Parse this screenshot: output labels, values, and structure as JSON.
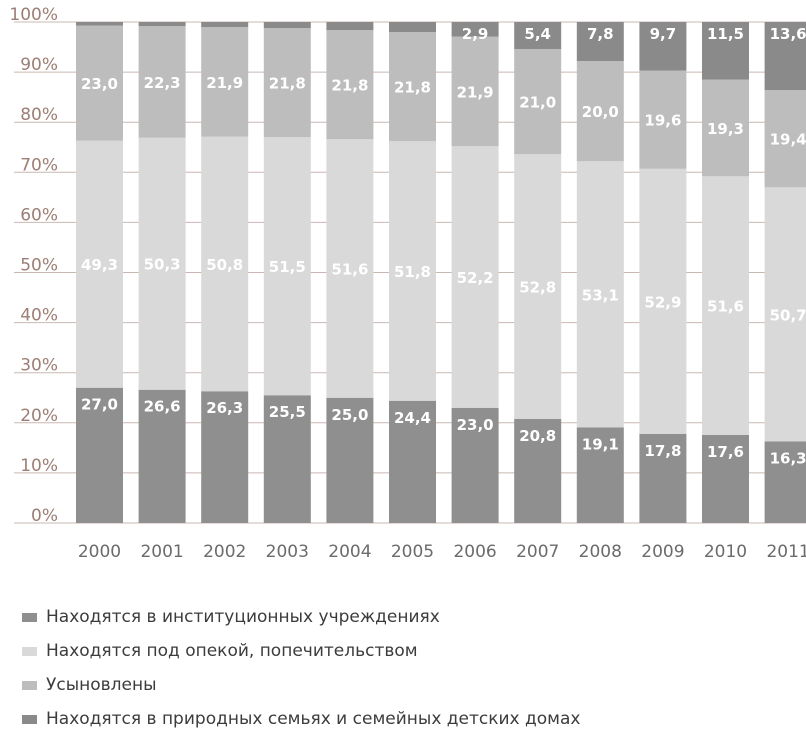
{
  "chart_data": {
    "type": "bar",
    "stacked": true,
    "categories": [
      "2000",
      "2001",
      "2002",
      "2003",
      "2004",
      "2005",
      "2006",
      "2007",
      "2008",
      "2009",
      "2010",
      "2011"
    ],
    "y_ticks": [
      "0%",
      "10%",
      "20%",
      "30%",
      "40%",
      "50%",
      "60%",
      "70%",
      "80%",
      "90%",
      "100%"
    ],
    "ylim": [
      0,
      100
    ],
    "grid": true,
    "legend_position": "bottom",
    "series": [
      {
        "name": "Находятся в институционных учреждениях",
        "color": "#8f8f8f",
        "values": [
          27.0,
          26.6,
          26.3,
          25.5,
          25.0,
          24.4,
          23.0,
          20.8,
          19.1,
          17.8,
          17.6,
          16.3
        ],
        "labels": [
          "27,0",
          "26,6",
          "26,3",
          "25,5",
          "25,0",
          "24,4",
          "23,0",
          "20,8",
          "19,1",
          "17,8",
          "17,6",
          "16,3"
        ]
      },
      {
        "name": "Находятся под опекой, попечительством",
        "color": "#d9d9d9",
        "values": [
          49.3,
          50.3,
          50.8,
          51.5,
          51.6,
          51.8,
          52.2,
          52.8,
          53.1,
          52.9,
          51.6,
          50.7
        ],
        "labels": [
          "49,3",
          "50,3",
          "50,8",
          "51,5",
          "51,6",
          "51,8",
          "52,2",
          "52,8",
          "53,1",
          "52,9",
          "51,6",
          "50,7"
        ]
      },
      {
        "name": "Усыновлены",
        "color": "#bdbdbd",
        "values": [
          23.0,
          22.3,
          21.9,
          21.8,
          21.8,
          21.8,
          21.9,
          21.0,
          20.0,
          19.6,
          19.3,
          19.4
        ],
        "labels": [
          "23,0",
          "22,3",
          "21,9",
          "21,8",
          "21,8",
          "21,8",
          "21,9",
          "21,0",
          "20,0",
          "19,6",
          "19,3",
          "19,4"
        ]
      },
      {
        "name": "Находятся в природных семьях и семейных детских домах",
        "color": "#8a8a8a",
        "values": [
          0.7,
          0.8,
          1.0,
          1.2,
          1.6,
          2.0,
          2.9,
          5.4,
          7.8,
          9.7,
          11.5,
          13.6
        ],
        "labels": [
          "",
          "",
          "",
          "",
          "",
          "",
          "2,9",
          "5,4",
          "7,8",
          "9,7",
          "11,5",
          "13,6"
        ]
      }
    ]
  }
}
